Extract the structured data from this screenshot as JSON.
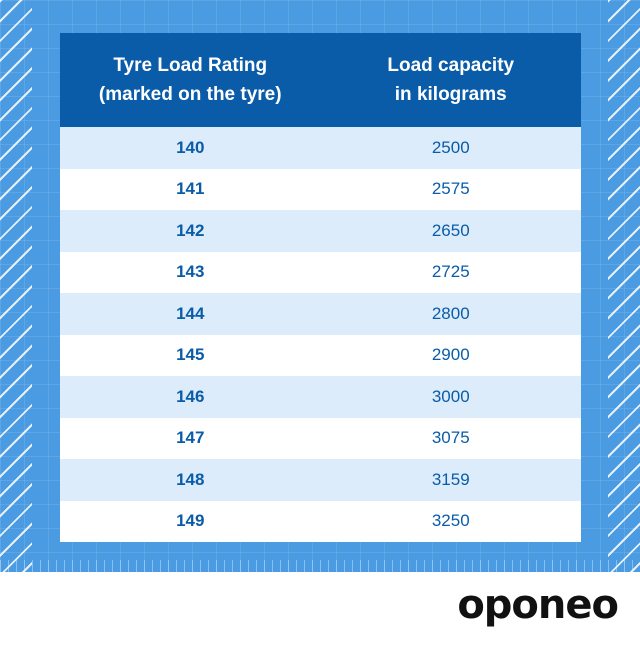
{
  "table": {
    "header": {
      "rating_line1": "Tyre Load Rating",
      "rating_line2": "(marked on the tyre)",
      "capacity_line1": "Load capacity",
      "capacity_line2": "in kilograms"
    },
    "rows": [
      {
        "rating": "140",
        "capacity": "2500"
      },
      {
        "rating": "141",
        "capacity": "2575"
      },
      {
        "rating": "142",
        "capacity": "2650"
      },
      {
        "rating": "143",
        "capacity": "2725"
      },
      {
        "rating": "144",
        "capacity": "2800"
      },
      {
        "rating": "145",
        "capacity": "2900"
      },
      {
        "rating": "146",
        "capacity": "3000"
      },
      {
        "rating": "147",
        "capacity": "3075"
      },
      {
        "rating": "148",
        "capacity": "3159"
      },
      {
        "rating": "149",
        "capacity": "3250"
      }
    ]
  },
  "logo": {
    "text": "oponeo"
  },
  "colors": {
    "background": "#4b9be2",
    "header": "#0a5ca8",
    "row_alt": "#dcecfb",
    "text": "#0a5ca8"
  }
}
